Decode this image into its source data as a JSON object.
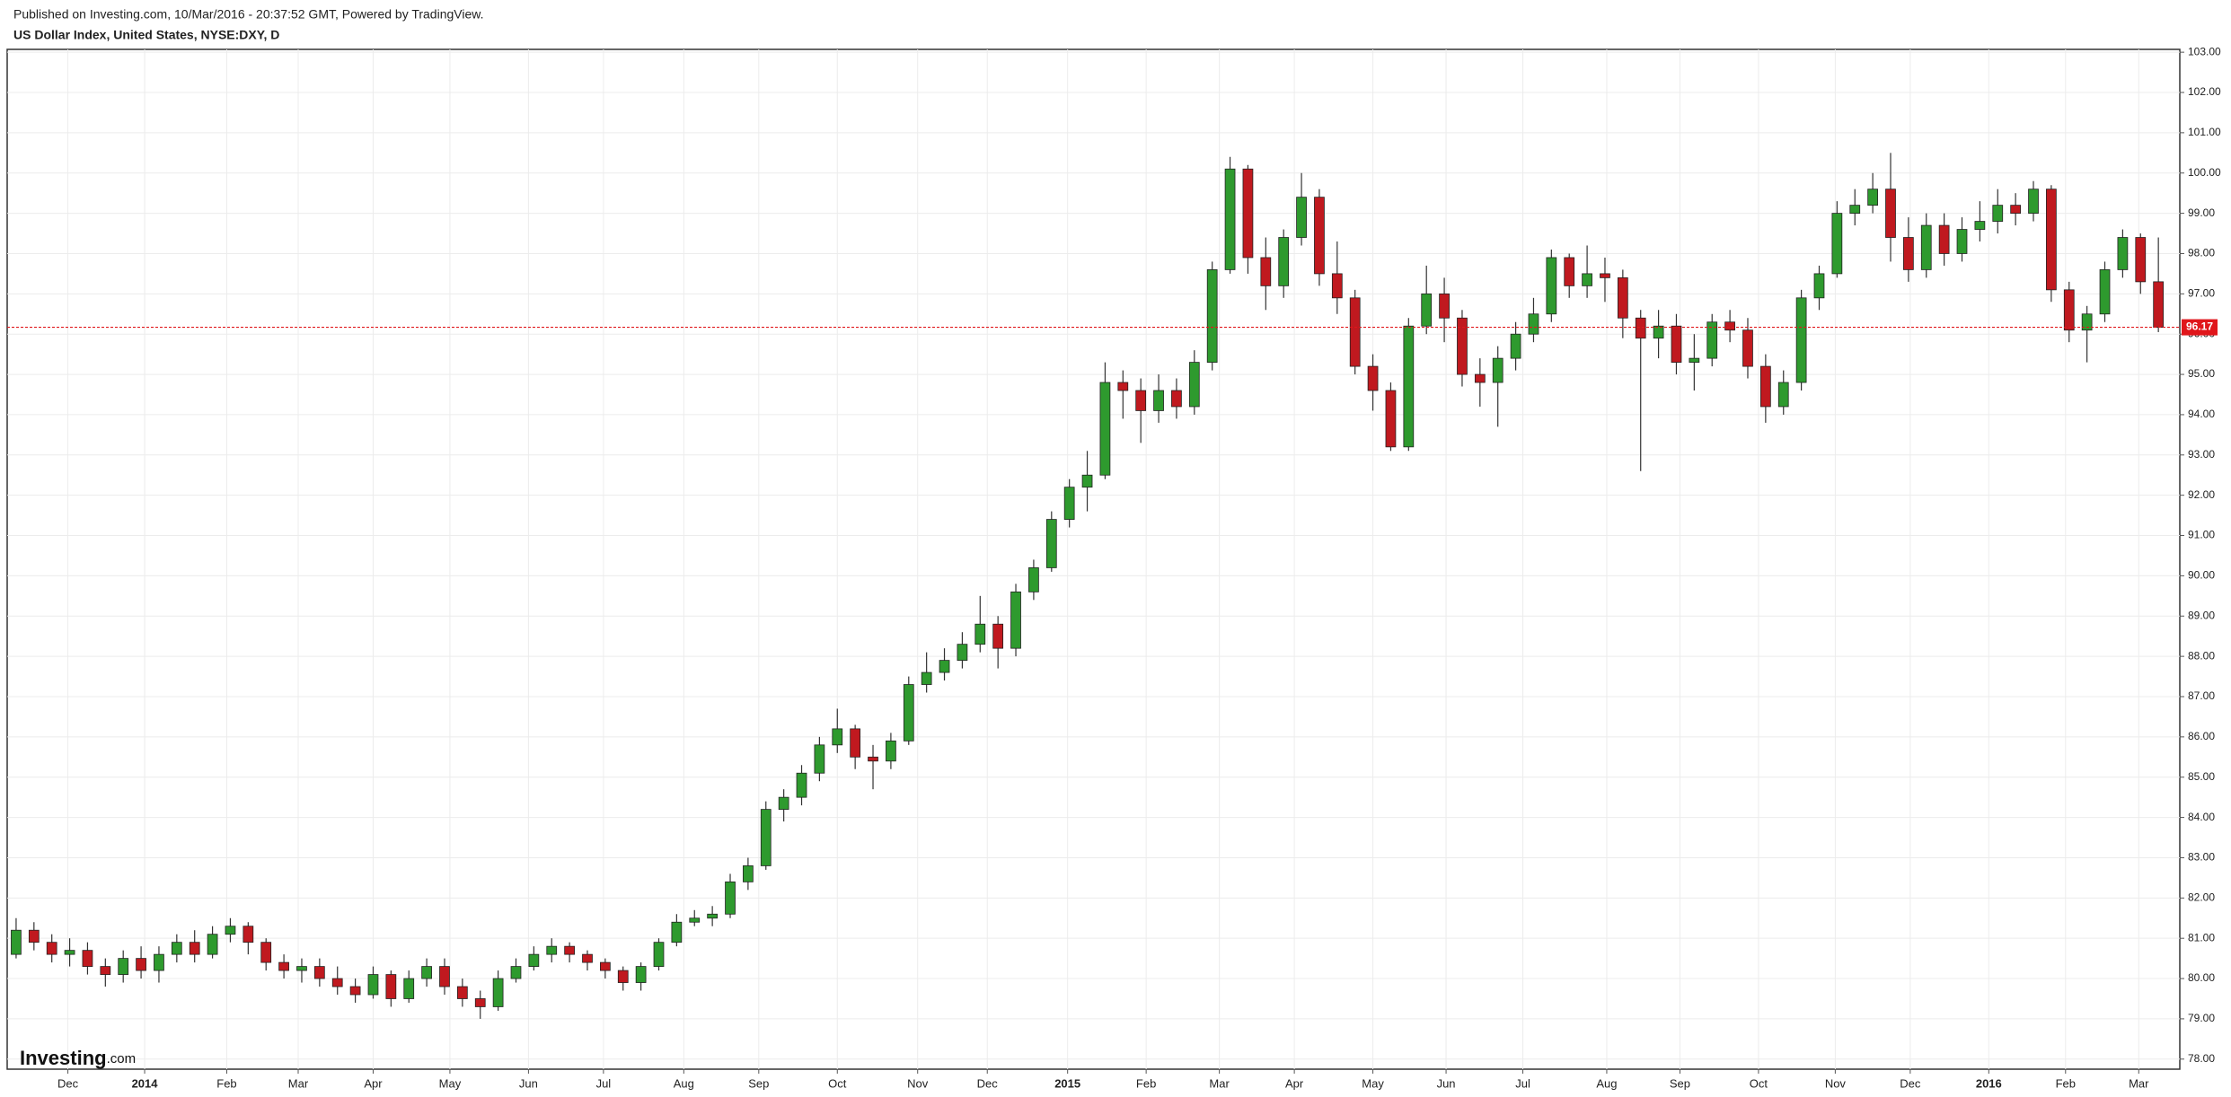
{
  "chart_data": {
    "type": "candlestick",
    "subtitle": "Published on Investing.com, 10/Mar/2016 - 20:37:52 GMT, Powered by TradingView.",
    "title": "US Dollar Index, United States, NYSE:DXY, D",
    "logo": {
      "name": "Investing",
      "suffix": ".com"
    },
    "up_color": "#2e9a2e",
    "down_color": "#c0191f",
    "price_line_color": "#e0161b",
    "grid": true,
    "open": [
      80.6,
      81.2,
      80.9,
      80.6,
      80.7,
      80.3,
      80.1,
      80.5,
      80.2,
      80.6,
      80.9,
      80.6,
      81.1,
      81.3,
      80.9,
      80.4,
      80.2,
      80.3,
      80.0,
      79.8,
      79.6,
      80.1,
      79.5,
      80.0,
      80.3,
      79.8,
      79.5,
      79.3,
      80.0,
      80.3,
      80.6,
      80.8,
      80.6,
      80.4,
      80.2,
      79.9,
      80.3,
      80.9,
      81.4,
      81.5,
      81.6,
      82.4,
      82.8,
      84.2,
      84.5,
      85.1,
      85.8,
      86.2,
      85.5,
      85.4,
      85.9,
      87.3,
      87.6,
      87.9,
      88.3,
      88.8,
      88.2,
      89.6,
      90.2,
      91.4,
      92.2,
      92.5,
      94.8,
      94.6,
      94.1,
      94.6,
      94.2,
      95.3,
      97.6,
      100.1,
      97.9,
      97.2,
      98.4,
      99.4,
      97.5,
      96.9,
      95.2,
      94.6,
      93.2,
      96.2,
      97.0,
      96.4,
      95.0,
      94.8,
      95.4,
      96.0,
      96.5,
      97.9,
      97.2,
      97.5,
      97.4,
      96.4,
      95.9,
      96.2,
      95.3,
      95.4,
      96.3,
      96.1,
      95.2,
      94.2,
      94.8,
      96.9,
      97.5,
      99.0,
      99.2,
      99.6,
      98.4,
      97.6,
      98.7,
      98.0,
      98.6,
      98.8,
      99.2,
      99.0,
      99.6,
      97.1,
      96.1,
      96.5,
      97.6,
      98.4,
      97.3
    ],
    "high": [
      81.5,
      81.4,
      81.1,
      81.0,
      80.9,
      80.5,
      80.7,
      80.8,
      80.8,
      81.1,
      81.2,
      81.3,
      81.5,
      81.4,
      81.0,
      80.6,
      80.5,
      80.5,
      80.3,
      80.0,
      80.3,
      80.2,
      80.2,
      80.5,
      80.5,
      80.0,
      79.7,
      80.2,
      80.5,
      80.8,
      81.0,
      80.9,
      80.7,
      80.5,
      80.3,
      80.4,
      81.0,
      81.6,
      81.7,
      81.8,
      82.6,
      83.0,
      84.4,
      84.7,
      85.3,
      86.0,
      86.7,
      86.3,
      85.8,
      86.1,
      87.5,
      88.1,
      88.2,
      88.6,
      89.5,
      89.0,
      89.8,
      90.4,
      91.6,
      92.4,
      93.1,
      95.3,
      95.1,
      94.9,
      95.0,
      94.9,
      95.6,
      97.8,
      100.4,
      100.2,
      98.4,
      98.6,
      100.0,
      99.6,
      98.3,
      97.1,
      95.5,
      94.8,
      96.4,
      97.7,
      97.4,
      96.6,
      95.4,
      95.7,
      96.3,
      96.9,
      98.1,
      98.0,
      98.2,
      97.9,
      97.6,
      96.6,
      96.6,
      96.5,
      96.0,
      96.5,
      96.6,
      96.4,
      95.5,
      95.1,
      97.1,
      97.7,
      99.3,
      99.6,
      100.0,
      100.5,
      98.9,
      99.0,
      99.0,
      98.9,
      99.3,
      99.6,
      99.5,
      99.8,
      99.7,
      97.3,
      96.7,
      97.8,
      98.6,
      98.5,
      98.4
    ],
    "low": [
      80.5,
      80.7,
      80.4,
      80.3,
      80.1,
      79.8,
      79.9,
      80.0,
      79.9,
      80.4,
      80.4,
      80.5,
      80.9,
      80.6,
      80.2,
      80.0,
      79.9,
      79.8,
      79.6,
      79.4,
      79.5,
      79.3,
      79.4,
      79.8,
      79.6,
      79.3,
      79.0,
      79.2,
      79.9,
      80.2,
      80.4,
      80.4,
      80.2,
      80.0,
      79.7,
      79.7,
      80.2,
      80.8,
      81.3,
      81.3,
      81.5,
      82.2,
      82.7,
      83.9,
      84.3,
      84.9,
      85.6,
      85.2,
      84.7,
      85.2,
      85.8,
      87.1,
      87.4,
      87.7,
      88.1,
      87.7,
      88.0,
      89.4,
      90.1,
      91.2,
      91.6,
      92.4,
      93.9,
      93.3,
      93.8,
      93.9,
      94.0,
      95.1,
      97.5,
      97.5,
      96.6,
      96.9,
      98.2,
      97.2,
      96.5,
      95.0,
      94.1,
      93.1,
      93.1,
      96.0,
      95.8,
      94.7,
      94.2,
      93.7,
      95.1,
      95.8,
      96.3,
      96.9,
      96.9,
      96.8,
      95.9,
      92.6,
      95.4,
      95.0,
      94.6,
      95.2,
      95.8,
      94.9,
      93.8,
      94.0,
      94.6,
      96.6,
      97.4,
      98.7,
      99.0,
      97.8,
      97.3,
      97.4,
      97.7,
      97.8,
      98.3,
      98.5,
      98.7,
      98.8,
      96.8,
      95.8,
      95.3,
      96.3,
      97.4,
      97.0,
      96.05
    ],
    "close": [
      81.2,
      80.9,
      80.6,
      80.7,
      80.3,
      80.1,
      80.5,
      80.2,
      80.6,
      80.9,
      80.6,
      81.1,
      81.3,
      80.9,
      80.4,
      80.2,
      80.3,
      80.0,
      79.8,
      79.6,
      80.1,
      79.5,
      80.0,
      80.3,
      79.8,
      79.5,
      79.3,
      80.0,
      80.3,
      80.6,
      80.8,
      80.6,
      80.4,
      80.2,
      79.9,
      80.3,
      80.9,
      81.4,
      81.5,
      81.6,
      82.4,
      82.8,
      84.2,
      84.5,
      85.1,
      85.8,
      86.2,
      85.5,
      85.4,
      85.9,
      87.3,
      87.6,
      87.9,
      88.3,
      88.8,
      88.2,
      89.6,
      90.2,
      91.4,
      92.2,
      92.5,
      94.8,
      94.6,
      94.1,
      94.6,
      94.2,
      95.3,
      97.6,
      100.1,
      97.9,
      97.2,
      98.4,
      99.4,
      97.5,
      96.9,
      95.2,
      94.6,
      93.2,
      96.2,
      97.0,
      96.4,
      95.0,
      94.8,
      95.4,
      96.0,
      96.5,
      97.9,
      97.2,
      97.5,
      97.4,
      96.4,
      95.9,
      96.2,
      95.3,
      95.4,
      96.3,
      96.1,
      95.2,
      94.2,
      94.8,
      96.9,
      97.5,
      99.0,
      99.2,
      99.6,
      98.4,
      97.6,
      98.7,
      98.0,
      98.6,
      98.8,
      99.2,
      99.0,
      99.6,
      97.1,
      96.1,
      96.5,
      97.6,
      98.4,
      97.3,
      96.17
    ],
    "xlim": [
      -0.5,
      121.2
    ],
    "xticks": [
      {
        "value": 2.9,
        "label": "Dec"
      },
      {
        "value": 7.2,
        "label": "2014"
      },
      {
        "value": 11.8,
        "label": "Feb"
      },
      {
        "value": 15.8,
        "label": "Mar"
      },
      {
        "value": 20.0,
        "label": "Apr"
      },
      {
        "value": 24.3,
        "label": "May"
      },
      {
        "value": 28.7,
        "label": "Jun"
      },
      {
        "value": 32.9,
        "label": "Jul"
      },
      {
        "value": 37.4,
        "label": "Aug"
      },
      {
        "value": 41.6,
        "label": "Sep"
      },
      {
        "value": 46.0,
        "label": "Oct"
      },
      {
        "value": 50.5,
        "label": "Nov"
      },
      {
        "value": 54.4,
        "label": "Dec"
      },
      {
        "value": 58.9,
        "label": "2015"
      },
      {
        "value": 63.3,
        "label": "Feb"
      },
      {
        "value": 67.4,
        "label": "Mar"
      },
      {
        "value": 71.6,
        "label": "Apr"
      },
      {
        "value": 76.0,
        "label": "May"
      },
      {
        "value": 80.1,
        "label": "Jun"
      },
      {
        "value": 84.4,
        "label": "Jul"
      },
      {
        "value": 89.1,
        "label": "Aug"
      },
      {
        "value": 93.2,
        "label": "Sep"
      },
      {
        "value": 97.6,
        "label": "Oct"
      },
      {
        "value": 101.9,
        "label": "Nov"
      },
      {
        "value": 106.1,
        "label": "Dec"
      },
      {
        "value": 110.5,
        "label": "2016"
      },
      {
        "value": 114.8,
        "label": "Feb"
      },
      {
        "value": 118.9,
        "label": "Mar"
      }
    ],
    "ylim": [
      77.75,
      103.07
    ],
    "yticks": [
      {
        "value": 78,
        "label": "78.00"
      },
      {
        "value": 79,
        "label": "79.00"
      },
      {
        "value": 80,
        "label": "80.00"
      },
      {
        "value": 81,
        "label": "81.00"
      },
      {
        "value": 82,
        "label": "82.00"
      },
      {
        "value": 83,
        "label": "83.00"
      },
      {
        "value": 84,
        "label": "84.00"
      },
      {
        "value": 85,
        "label": "85.00"
      },
      {
        "value": 86,
        "label": "86.00"
      },
      {
        "value": 87,
        "label": "87.00"
      },
      {
        "value": 88,
        "label": "88.00"
      },
      {
        "value": 89,
        "label": "89.00"
      },
      {
        "value": 90,
        "label": "90.00"
      },
      {
        "value": 91,
        "label": "91.00"
      },
      {
        "value": 92,
        "label": "92.00"
      },
      {
        "value": 93,
        "label": "93.00"
      },
      {
        "value": 94,
        "label": "94.00"
      },
      {
        "value": 95,
        "label": "95.00"
      },
      {
        "value": 96,
        "label": "96.00"
      },
      {
        "value": 97,
        "label": "97.00"
      },
      {
        "value": 98,
        "label": "98.00"
      },
      {
        "value": 99,
        "label": "99.00"
      },
      {
        "value": 100,
        "label": "100.00"
      },
      {
        "value": 101,
        "label": "101.00"
      },
      {
        "value": 102,
        "label": "102.00"
      },
      {
        "value": 103,
        "label": "103.00"
      }
    ]
  }
}
